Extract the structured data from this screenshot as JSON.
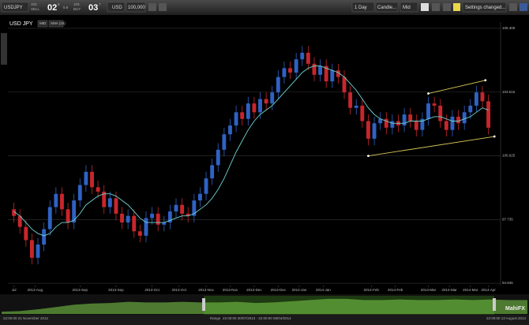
{
  "toolbar": {
    "symbol": "USDJPY",
    "sell_prefix": "102.",
    "sell_label": "SELL",
    "sell_big": "02",
    "sell_sup": "8",
    "spread": "5.8",
    "buy_prefix": "103.",
    "buy_label": "BUY",
    "buy_big": "03",
    "buy_sup": "7",
    "currency": "USD",
    "amount": "100,000",
    "interval": "1 Day",
    "chart_type": "Candle...",
    "price_type": "Mid",
    "settings": "Settings changed..."
  },
  "legend": {
    "symbol": "USD JPY",
    "mid": "MID",
    "sma": "SMA (10)"
  },
  "chart_data": {
    "type": "candlestick",
    "up_color": "#2f62c4",
    "down_color": "#c8262c",
    "grid": true,
    "xlim": [
      -1,
      80.5
    ],
    "ylim": [
      94.74,
      106.69
    ],
    "yticks": [
      94.846,
      97.735,
      100.625,
      103.515,
      106.405
    ],
    "xticks": [
      {
        "value": 0,
        "label": "Jul"
      },
      {
        "value": 3.5,
        "label": "2013-Aug"
      },
      {
        "value": 11,
        "label": "2013-Sep"
      },
      {
        "value": 17,
        "label": "2013-Sep"
      },
      {
        "value": 23,
        "label": "2013-Oct"
      },
      {
        "value": 27.5,
        "label": "2013-Oct"
      },
      {
        "value": 32,
        "label": "2013-Nov"
      },
      {
        "value": 36,
        "label": "2013-Nov"
      },
      {
        "value": 40,
        "label": "2013-Dec"
      },
      {
        "value": 44,
        "label": "2013-Dec"
      },
      {
        "value": 47.5,
        "label": "2014-Jan"
      },
      {
        "value": 51.5,
        "label": "2014-Jan"
      },
      {
        "value": 59.5,
        "label": "2014-Feb"
      },
      {
        "value": 63.5,
        "label": "2014-Feb"
      },
      {
        "value": 69,
        "label": "2014-Mar"
      },
      {
        "value": 72.5,
        "label": "2014-Mar"
      },
      {
        "value": 76,
        "label": "2014-Mar"
      },
      {
        "value": 79,
        "label": "2014-Apr"
      }
    ],
    "open": [
      98.2,
      97.9,
      97.4,
      96.8,
      96.0,
      96.6,
      97.3,
      98.3,
      98.9,
      98.2,
      97.6,
      98.6,
      99.3,
      99.9,
      99.2,
      99.0,
      98.3,
      98.7,
      98.0,
      97.6,
      97.9,
      97.2,
      97.0,
      97.8,
      98.0,
      97.5,
      97.6,
      98.1,
      98.4,
      98.0,
      97.9,
      98.6,
      98.9,
      99.6,
      100.2,
      100.9,
      101.6,
      102.0,
      102.6,
      102.3,
      103.0,
      102.6,
      103.2,
      103.0,
      103.5,
      104.2,
      104.6,
      104.4,
      105.0,
      105.3,
      104.8,
      104.3,
      104.7,
      104.0,
      104.5,
      104.2,
      103.5,
      102.8,
      102.9,
      102.2,
      101.4,
      102.1,
      102.3,
      101.9,
      102.2,
      102.0,
      102.5,
      102.2,
      101.8,
      102.3,
      103.0,
      102.9,
      102.2,
      101.8,
      102.4,
      102.1,
      102.6,
      102.9,
      103.5,
      103.1
    ],
    "high": [
      98.5,
      98.2,
      97.7,
      97.1,
      96.9,
      97.6,
      98.6,
      99.2,
      99.2,
      98.5,
      98.9,
      99.6,
      100.2,
      100.2,
      99.5,
      99.3,
      99.0,
      99.0,
      98.3,
      98.2,
      98.2,
      97.5,
      98.1,
      98.3,
      98.3,
      97.9,
      98.4,
      98.7,
      98.7,
      98.3,
      98.9,
      99.2,
      99.9,
      100.5,
      101.2,
      101.9,
      102.3,
      102.9,
      102.9,
      103.3,
      103.3,
      103.5,
      103.5,
      103.8,
      104.5,
      104.9,
      104.9,
      105.3,
      105.6,
      105.6,
      105.1,
      105.0,
      105.0,
      104.8,
      104.8,
      104.5,
      103.8,
      103.2,
      103.2,
      102.5,
      102.4,
      102.6,
      102.6,
      102.5,
      102.5,
      102.8,
      102.8,
      102.5,
      102.6,
      103.3,
      103.3,
      103.2,
      102.5,
      102.7,
      102.7,
      102.9,
      103.2,
      103.8,
      103.8,
      103.4
    ],
    "low": [
      97.6,
      97.1,
      96.5,
      95.7,
      95.7,
      96.3,
      97.0,
      98.0,
      97.9,
      97.3,
      97.3,
      98.3,
      99.0,
      98.9,
      98.7,
      98.0,
      98.0,
      97.7,
      97.3,
      97.3,
      96.9,
      96.7,
      96.7,
      97.5,
      97.2,
      97.2,
      97.3,
      97.8,
      97.7,
      97.6,
      97.6,
      98.3,
      98.6,
      99.3,
      99.9,
      100.6,
      101.3,
      101.7,
      102.0,
      102.0,
      102.3,
      102.3,
      102.7,
      102.7,
      103.2,
      103.9,
      104.1,
      104.1,
      104.7,
      104.5,
      104.0,
      104.0,
      103.7,
      103.7,
      103.9,
      103.2,
      102.5,
      102.5,
      101.9,
      101.1,
      101.1,
      101.8,
      101.6,
      101.6,
      101.7,
      101.7,
      101.9,
      101.5,
      101.5,
      102.0,
      102.6,
      101.9,
      101.5,
      101.5,
      101.8,
      101.8,
      102.3,
      102.6,
      102.8,
      101.6
    ],
    "close": [
      97.9,
      97.4,
      96.8,
      96.0,
      96.6,
      97.3,
      98.3,
      98.9,
      98.2,
      97.6,
      98.6,
      99.3,
      99.9,
      99.2,
      99.0,
      98.3,
      98.7,
      98.0,
      97.6,
      97.9,
      97.2,
      97.0,
      97.8,
      98.0,
      97.5,
      97.6,
      98.1,
      98.4,
      98.0,
      97.9,
      98.6,
      98.9,
      99.6,
      100.2,
      100.9,
      101.6,
      102.0,
      102.6,
      102.3,
      103.0,
      102.6,
      103.2,
      103.0,
      103.5,
      104.2,
      104.6,
      104.4,
      105.0,
      105.3,
      104.8,
      104.3,
      104.7,
      104.0,
      104.5,
      104.2,
      103.5,
      102.8,
      102.9,
      102.2,
      101.4,
      102.1,
      102.3,
      101.9,
      102.2,
      102.0,
      102.5,
      102.2,
      101.8,
      102.3,
      103.0,
      102.9,
      102.2,
      101.8,
      102.4,
      102.1,
      102.6,
      102.9,
      103.5,
      103.1,
      101.9
    ],
    "sma": {
      "color": "#6fd3cf",
      "values": [
        98.1,
        97.9,
        97.6,
        97.3,
        97.1,
        97.0,
        97.1,
        97.4,
        97.6,
        97.6,
        97.7,
        98.0,
        98.4,
        98.6,
        98.8,
        98.9,
        98.9,
        98.8,
        98.6,
        98.4,
        98.1,
        97.8,
        97.6,
        97.6,
        97.6,
        97.6,
        97.7,
        97.8,
        97.9,
        97.9,
        98.0,
        98.2,
        98.4,
        98.7,
        99.1,
        99.6,
        100.2,
        100.8,
        101.3,
        101.8,
        102.2,
        102.5,
        102.7,
        102.9,
        103.2,
        103.5,
        103.8,
        104.1,
        104.4,
        104.6,
        104.7,
        104.7,
        104.6,
        104.5,
        104.4,
        104.2,
        103.9,
        103.6,
        103.2,
        102.8,
        102.5,
        102.3,
        102.2,
        102.1,
        102.1,
        102.1,
        102.2,
        102.2,
        102.2,
        102.3,
        102.4,
        102.4,
        102.3,
        102.2,
        102.2,
        102.3,
        102.4,
        102.6,
        102.8,
        102.7
      ]
    },
    "trendlines": [
      {
        "color": "#d9c85a",
        "x": [
          69,
          78.5
        ],
        "y": [
          103.45,
          104.05
        ]
      },
      {
        "color": "#d9c85a",
        "x": [
          59,
          80
        ],
        "y": [
          100.62,
          101.5
        ]
      }
    ]
  },
  "navigator": {
    "color": "#7fd14a",
    "ylim": [
      78,
      108
    ],
    "values": [
      82,
      83,
      86,
      90,
      94,
      96,
      97,
      99,
      98,
      98,
      99,
      98,
      98,
      99,
      97,
      98,
      100,
      102,
      104,
      104,
      102,
      102,
      103,
      102,
      102,
      103,
      102,
      103,
      102,
      102
    ],
    "start": "22:00:00 21 November 2012",
    "range_label": "Range",
    "range": "22:00:00 30/07/2013 - 22:00:00 08/04/2014",
    "end": "22:00:00 13 August 2014",
    "logo": "MahiFX"
  }
}
